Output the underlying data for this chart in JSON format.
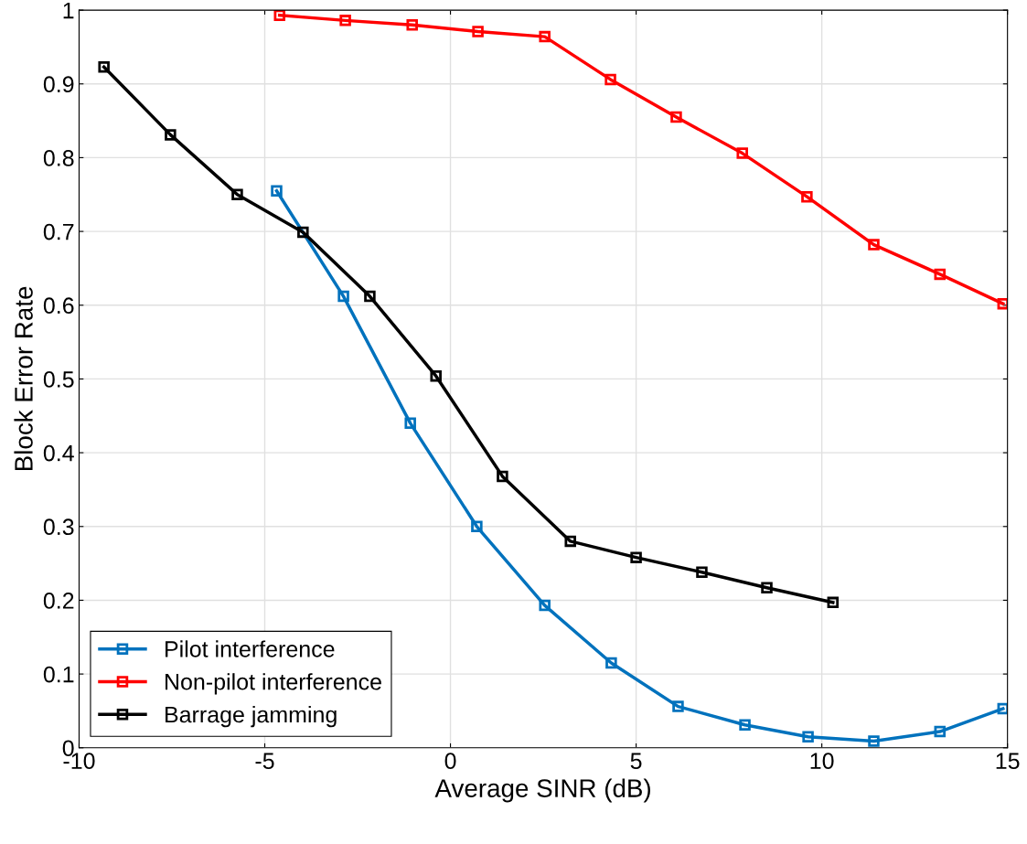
{
  "chart_data": {
    "type": "line",
    "xlabel": "Average SINR (dB)",
    "ylabel": "Block Error Rate",
    "xlim": [
      -10,
      15
    ],
    "xticks": [
      -10,
      -5,
      0,
      5,
      10,
      15
    ],
    "ylim": [
      0,
      1
    ],
    "yticks": [
      0,
      0.1,
      0.2,
      0.3,
      0.4,
      0.5,
      0.6,
      0.7,
      0.8,
      0.9,
      1
    ],
    "grid": true,
    "legend": "bottom left",
    "marker": "square",
    "line_style": "solid",
    "series": [
      {
        "name": "Pilot interference",
        "color": "#0072bd",
        "x": [
          -4.68,
          -2.88,
          -1.08,
          0.71,
          2.54,
          4.33,
          6.13,
          7.93,
          9.63,
          11.4,
          13.18,
          14.88
        ],
        "values": [
          0.755,
          0.612,
          0.44,
          0.3,
          0.193,
          0.115,
          0.056,
          0.031,
          0.015,
          0.009,
          0.022,
          0.053
        ]
      },
      {
        "name": "Non-pilot interference",
        "color": "#ff0000",
        "x": [
          -4.6,
          -2.83,
          -1.03,
          0.74,
          2.54,
          4.31,
          6.08,
          7.86,
          9.6,
          11.4,
          13.18,
          14.88
        ],
        "values": [
          0.993,
          0.986,
          0.98,
          0.971,
          0.964,
          0.906,
          0.855,
          0.806,
          0.747,
          0.682,
          0.642,
          0.602
        ]
      },
      {
        "name": "Barrage jamming",
        "color": "#000000",
        "x": [
          -9.33,
          -7.54,
          -5.74,
          -3.97,
          -2.17,
          -0.39,
          1.4,
          3.23,
          5.0,
          6.77,
          8.52,
          10.3
        ],
        "values": [
          0.923,
          0.831,
          0.75,
          0.699,
          0.612,
          0.504,
          0.368,
          0.28,
          0.258,
          0.238,
          0.217,
          0.197
        ]
      }
    ]
  }
}
